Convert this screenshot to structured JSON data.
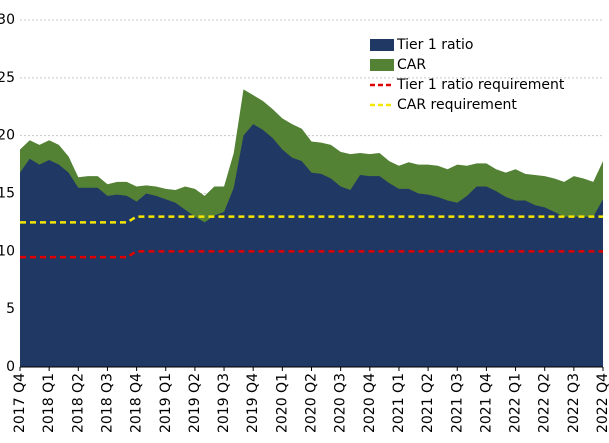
{
  "chart_data": {
    "type": "area",
    "categories": [
      "2017 Q4",
      null,
      null,
      "2018 Q1",
      null,
      null,
      "2018 Q2",
      null,
      null,
      "2018 Q3",
      null,
      null,
      "2018 Q4",
      null,
      null,
      "2019 Q1",
      null,
      null,
      "2019 Q2",
      null,
      null,
      "2019 Q3",
      null,
      null,
      "2019 Q4",
      null,
      null,
      "2020 Q1",
      null,
      null,
      "2020 Q2",
      null,
      null,
      "2020 Q3",
      null,
      null,
      "2020 Q4",
      null,
      null,
      "2021 Q1",
      null,
      null,
      "2021 Q2",
      null,
      null,
      "2021 Q3",
      null,
      null,
      "2021 Q4",
      null,
      null,
      "2022 Q1",
      null,
      null,
      "2022 Q2",
      null,
      null,
      "2022 Q3",
      null,
      null,
      "2022 Q4"
    ],
    "series": [
      {
        "name": "Tier 1 ratio",
        "color": "#1f3864",
        "style": "area",
        "values": [
          16.8,
          18.0,
          17.5,
          17.9,
          17.5,
          16.8,
          15.5,
          15.5,
          15.5,
          14.8,
          14.9,
          14.8,
          14.3,
          15.0,
          14.8,
          14.5,
          14.2,
          13.6,
          13.0,
          12.5,
          13.1,
          13.4,
          15.5,
          20.0,
          21.0,
          20.5,
          19.8,
          18.8,
          18.1,
          17.8,
          16.8,
          16.7,
          16.3,
          15.6,
          15.3,
          16.6,
          16.5,
          16.5,
          15.9,
          15.4,
          15.4,
          15.0,
          14.9,
          14.7,
          14.4,
          14.2,
          14.8,
          15.6,
          15.6,
          15.2,
          14.7,
          14.4,
          14.4,
          14.0,
          13.8,
          13.4,
          13.0,
          13.0,
          13.0,
          13.0,
          14.5
        ]
      },
      {
        "name": "CAR",
        "color": "#548235",
        "style": "area",
        "values": [
          18.8,
          19.6,
          19.2,
          19.6,
          19.2,
          18.2,
          16.4,
          16.5,
          16.5,
          15.8,
          16.0,
          16.0,
          15.6,
          15.7,
          15.6,
          15.4,
          15.3,
          15.6,
          15.4,
          14.8,
          15.6,
          15.6,
          18.5,
          24.0,
          23.5,
          23.0,
          22.3,
          21.5,
          21.0,
          20.6,
          19.5,
          19.4,
          19.2,
          18.6,
          18.4,
          18.5,
          18.4,
          18.5,
          17.8,
          17.4,
          17.7,
          17.5,
          17.5,
          17.4,
          17.1,
          17.5,
          17.4,
          17.6,
          17.6,
          17.1,
          16.8,
          17.1,
          16.7,
          16.6,
          16.5,
          16.3,
          16.0,
          16.5,
          16.3,
          16.0,
          17.8
        ]
      },
      {
        "name": "Tier 1 ratio requirement",
        "color": "#e00000",
        "style": "dashed",
        "values": [
          9.5,
          9.5,
          9.5,
          9.5,
          9.5,
          9.5,
          9.5,
          9.5,
          9.5,
          9.5,
          9.5,
          9.5,
          10,
          10,
          10,
          10,
          10,
          10,
          10,
          10,
          10,
          10,
          10,
          10,
          10,
          10,
          10,
          10,
          10,
          10,
          10,
          10,
          10,
          10,
          10,
          10,
          10,
          10,
          10,
          10,
          10,
          10,
          10,
          10,
          10,
          10,
          10,
          10,
          10,
          10,
          10,
          10,
          10,
          10,
          10,
          10,
          10,
          10,
          10,
          10,
          10
        ]
      },
      {
        "name": "CAR requirement",
        "color": "#f5e600",
        "style": "dashed",
        "values": [
          12.5,
          12.5,
          12.5,
          12.5,
          12.5,
          12.5,
          12.5,
          12.5,
          12.5,
          12.5,
          12.5,
          12.5,
          13,
          13,
          13,
          13,
          13,
          13,
          13,
          13,
          13,
          13,
          13,
          13,
          13,
          13,
          13,
          13,
          13,
          13,
          13,
          13,
          13,
          13,
          13,
          13,
          13,
          13,
          13,
          13,
          13,
          13,
          13,
          13,
          13,
          13,
          13,
          13,
          13,
          13,
          13,
          13,
          13,
          13,
          13,
          13,
          13,
          13,
          13,
          13,
          13
        ]
      }
    ],
    "ylim": [
      0,
      30
    ],
    "yticks": [
      0,
      5,
      10,
      15,
      20,
      25,
      30
    ],
    "grid": true,
    "legend": "upper right"
  }
}
